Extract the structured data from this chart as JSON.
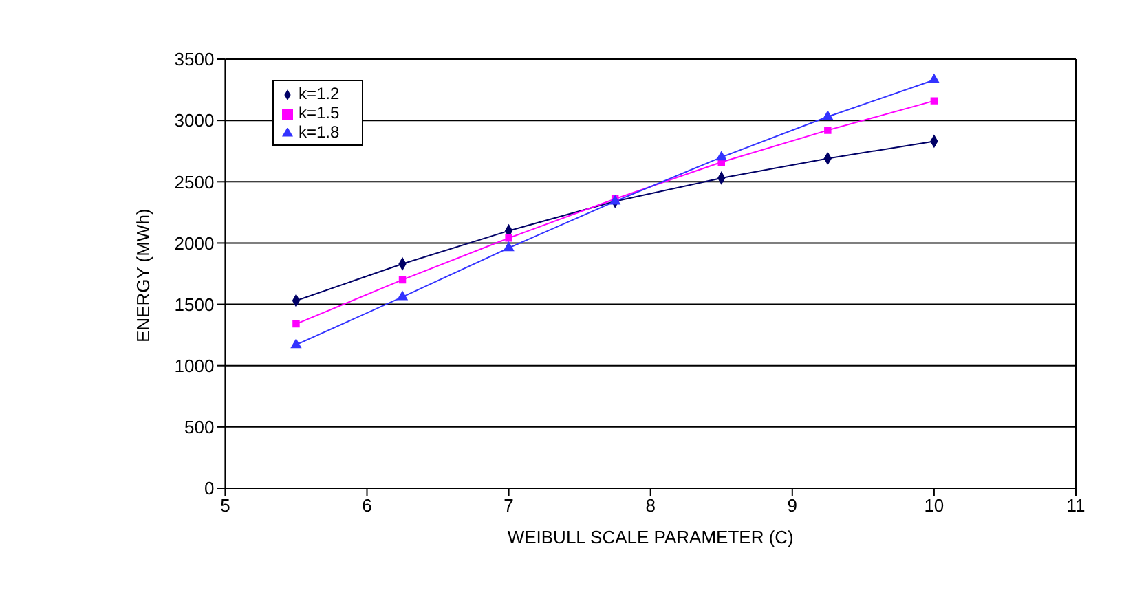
{
  "chart_data": {
    "type": "line",
    "xlabel": "WEIBULL SCALE PARAMETER (C)",
    "ylabel": "ENERGY (MWh)",
    "x": [
      5.5,
      6.25,
      7,
      7.75,
      8.5,
      9.25,
      10
    ],
    "series": [
      {
        "name": "k=1.2",
        "color": "#000066",
        "marker": "diamond",
        "values": [
          1530,
          1830,
          2100,
          2340,
          2530,
          2690,
          2830
        ]
      },
      {
        "name": "k=1.5",
        "color": "#ff00ff",
        "marker": "square",
        "values": [
          1340,
          1700,
          2040,
          2360,
          2660,
          2920,
          3160
        ]
      },
      {
        "name": "k=1.8",
        "color": "#3333ff",
        "marker": "triangle",
        "values": [
          1170,
          1560,
          1960,
          2340,
          2700,
          3030,
          3330
        ]
      }
    ],
    "xlim": [
      5,
      11
    ],
    "xticks": [
      5,
      6,
      7,
      8,
      9,
      10,
      11
    ],
    "ylim": [
      0,
      3500
    ],
    "yticks": [
      0,
      500,
      1000,
      1500,
      2000,
      2500,
      3000,
      3500
    ],
    "grid": "y",
    "legend": "top left",
    "line_style": "solid"
  }
}
